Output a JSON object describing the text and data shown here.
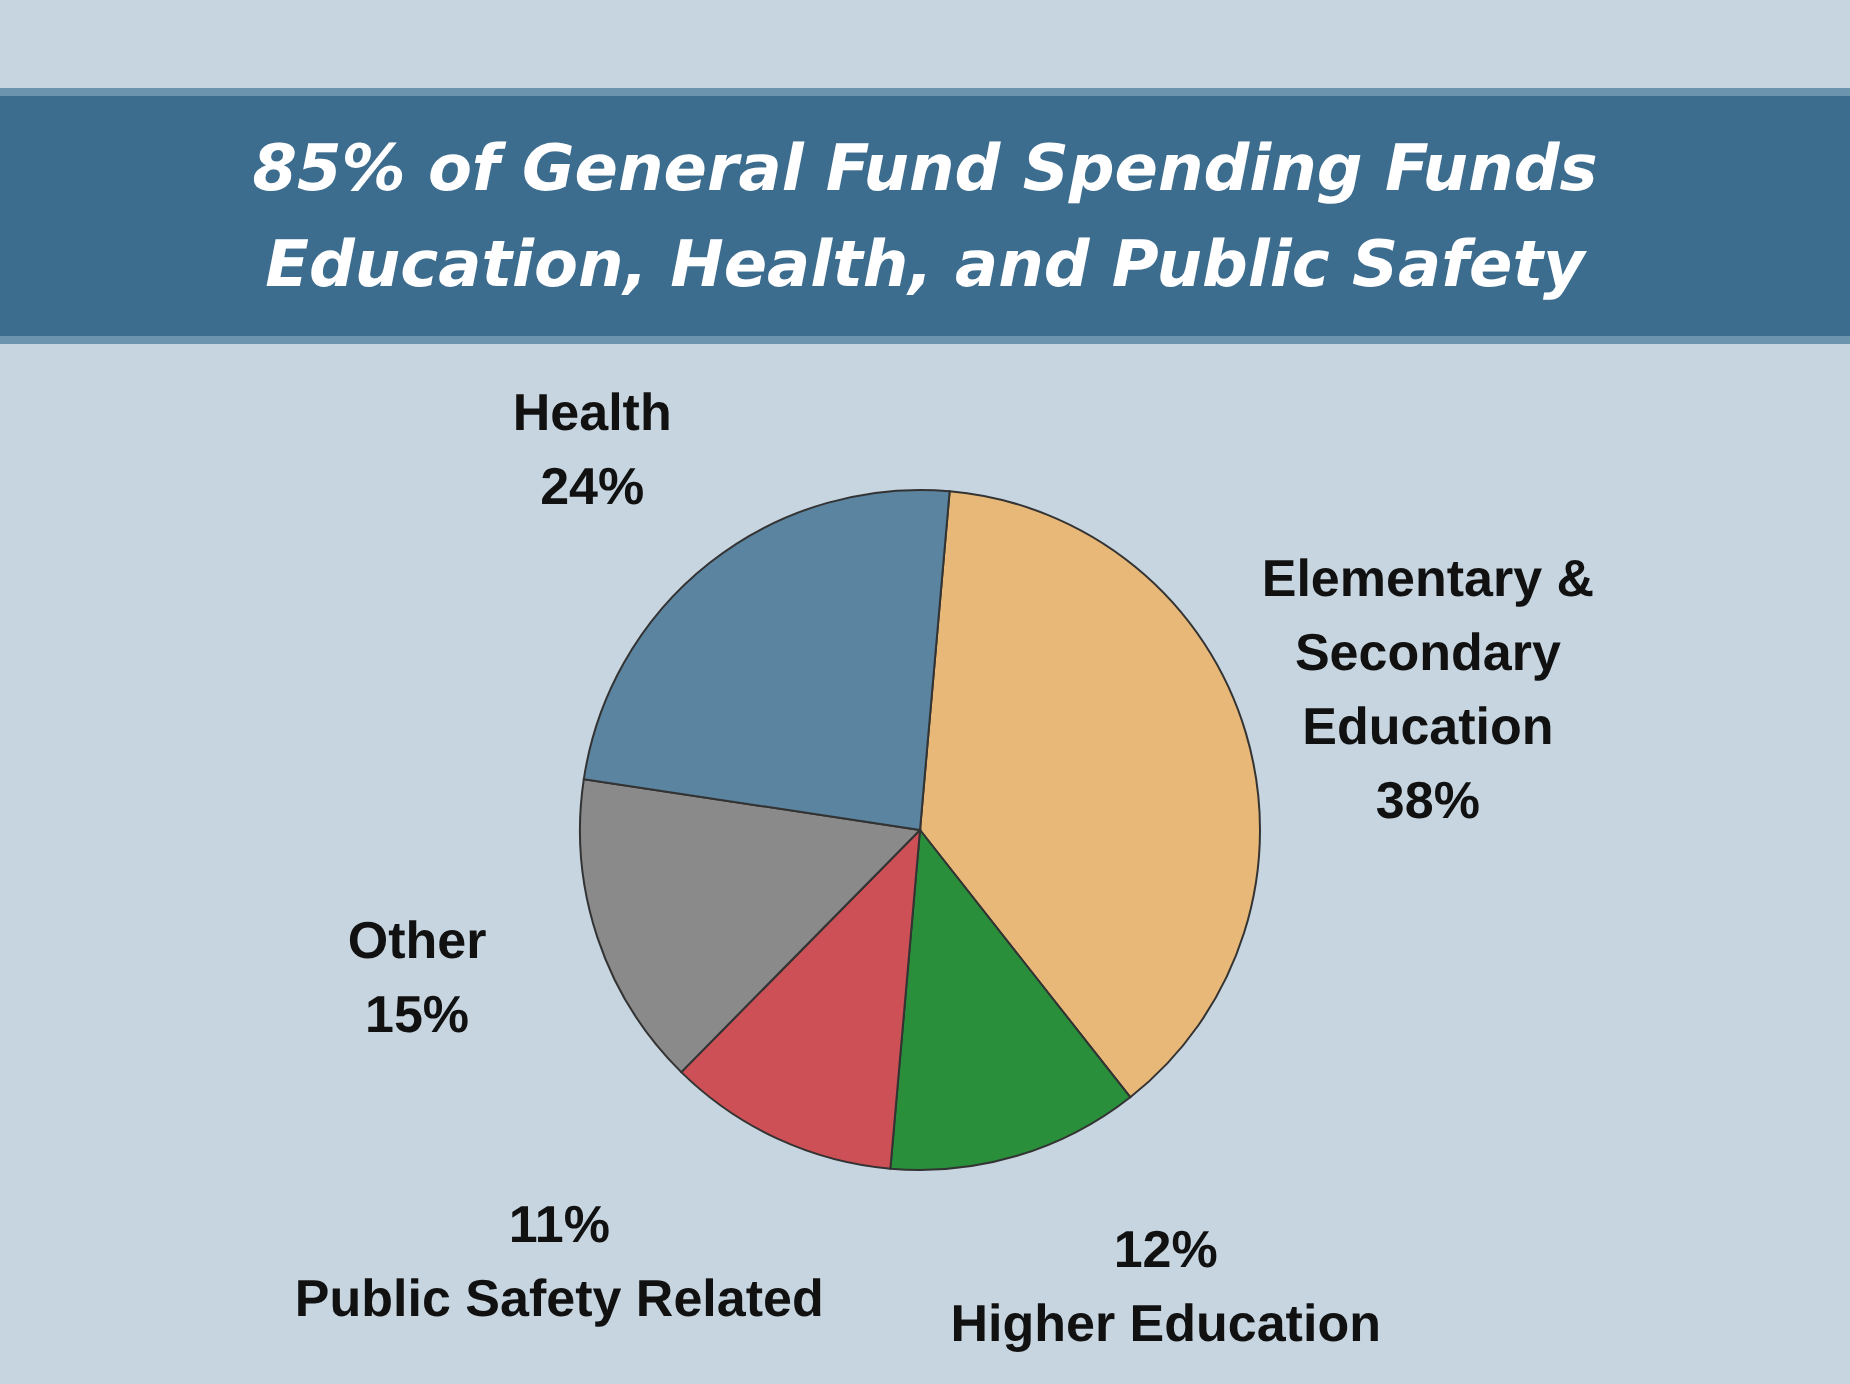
{
  "chart_data": {
    "type": "pie",
    "title": "85% of General Fund Spending Funds Education, Health, and Public Safety",
    "categories": [
      "Elementary & Secondary Education",
      "Higher Education",
      "Public Safety Related",
      "Other",
      "Health"
    ],
    "values": [
      38,
      12,
      11,
      15,
      24
    ],
    "colors": [
      "#e8b878",
      "#2a8f3a",
      "#cc5055",
      "#8a8a8a",
      "#5b84a0"
    ],
    "value_labels": [
      "38%",
      "12%",
      "11%",
      "15%",
      "24%"
    ]
  }
}
